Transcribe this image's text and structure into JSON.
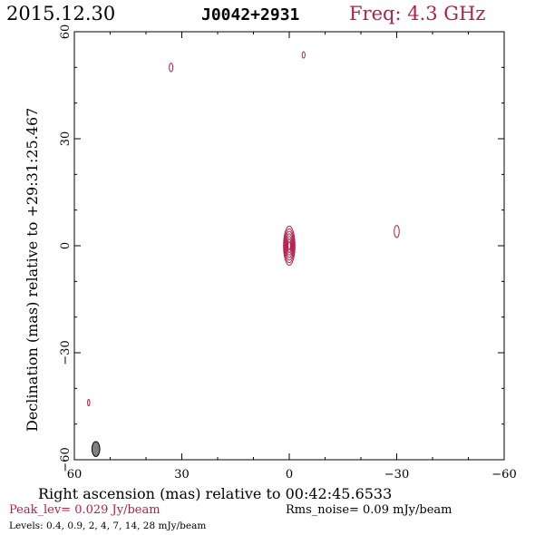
{
  "header": {
    "date": "2015.12.30",
    "source": "J0042+2931",
    "freq": "Freq: 4.3 GHz"
  },
  "footer": {
    "peak": "Peak_lev=  0.029 Jy/beam",
    "rms": "Rms_noise= 0.09 mJy/beam",
    "levels": "Levels: 0.4, 0.9,   2,   4,   7,  14,  28 mJy/beam"
  },
  "colors": {
    "contour": "#b0204a",
    "accent_text": "#b0204a",
    "beam_fill": "#808080",
    "axis": "#000000"
  },
  "chart_data": {
    "type": "contour",
    "xlabel": "Right ascension (mas) relative to 00:42:45.6533",
    "ylabel": "Declination (mas) relative to +29:31:25.467",
    "xlim": [
      60,
      -60
    ],
    "ylim": [
      -60,
      60
    ],
    "xticks": [
      60,
      30,
      0,
      -30,
      -60
    ],
    "yticks": [
      -60,
      -30,
      0,
      30,
      60
    ],
    "xtick_labels": [
      "60",
      "30",
      "0",
      "−30",
      "−60"
    ],
    "ytick_labels": [
      "−60",
      "−30",
      "0",
      "30",
      "60"
    ],
    "contour_levels_mJy": [
      0.4,
      0.9,
      2,
      4,
      7,
      14,
      28
    ],
    "components": [
      {
        "x": 0,
        "y": 0,
        "a": 1.6,
        "b": 5.5,
        "levels": 7
      },
      {
        "x": 33,
        "y": 50,
        "a": 0.5,
        "b": 1.2,
        "levels": 1
      },
      {
        "x": -4,
        "y": 53.5,
        "a": 0.4,
        "b": 0.9,
        "levels": 1
      },
      {
        "x": -30,
        "y": 4,
        "a": 0.7,
        "b": 1.7,
        "levels": 1
      },
      {
        "x": 56,
        "y": -44,
        "a": 0.3,
        "b": 0.9,
        "levels": 1
      }
    ],
    "beam": {
      "x": 54,
      "y": -57,
      "a": 1.1,
      "b": 2.1
    }
  }
}
